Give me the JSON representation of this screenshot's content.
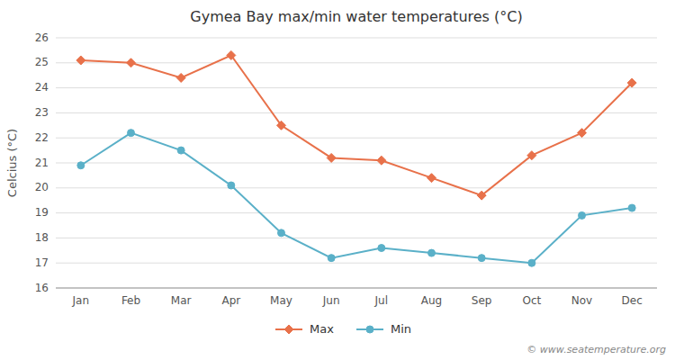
{
  "chart_data": {
    "type": "line",
    "title": "Gymea Bay max/min water temperatures (°C)",
    "y_label": "Celcius (°C)",
    "categories": [
      "Jan",
      "Feb",
      "Mar",
      "Apr",
      "May",
      "Jun",
      "Jul",
      "Aug",
      "Sep",
      "Oct",
      "Nov",
      "Dec"
    ],
    "series": [
      {
        "name": "Max",
        "color": "#e8714a",
        "marker": "diamond",
        "values": [
          25.1,
          25.0,
          24.4,
          25.3,
          22.5,
          21.2,
          21.1,
          20.4,
          19.7,
          21.3,
          22.2,
          24.2
        ]
      },
      {
        "name": "Min",
        "color": "#5ab0c8",
        "marker": "circle",
        "values": [
          20.9,
          22.2,
          21.5,
          20.1,
          18.2,
          17.2,
          17.6,
          17.4,
          17.2,
          17.0,
          18.9,
          19.2
        ]
      }
    ],
    "ylim": [
      16,
      26
    ],
    "yticks": [
      16,
      17,
      18,
      19,
      20,
      21,
      22,
      23,
      24,
      25,
      26
    ],
    "grid": true,
    "legend": "bottom",
    "annotations": [
      "© www.seatemperature.org"
    ]
  }
}
